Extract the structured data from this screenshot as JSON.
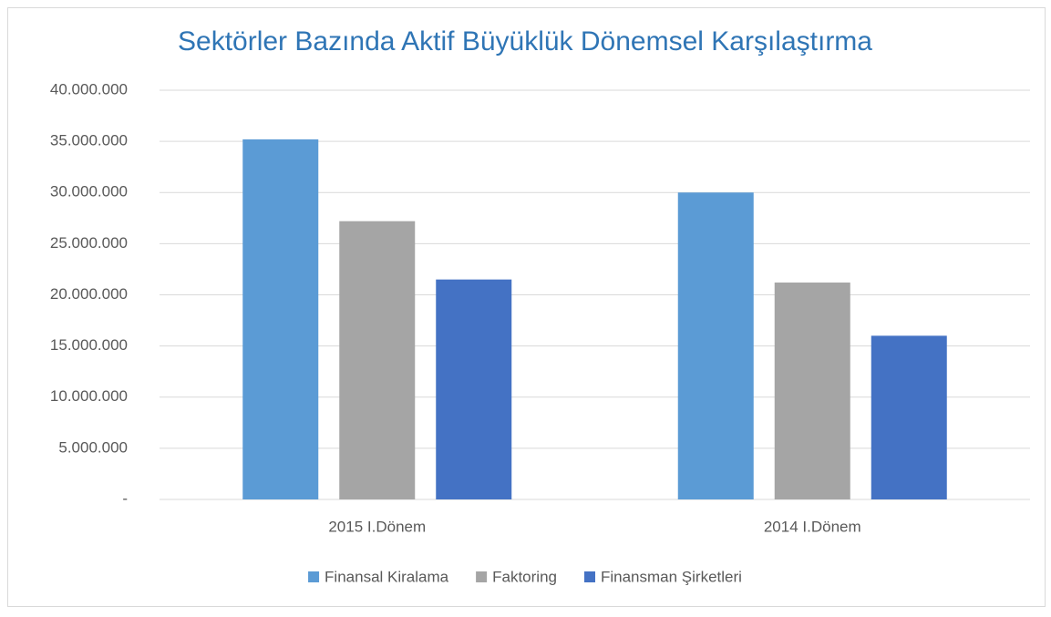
{
  "chart_data": {
    "type": "bar",
    "title": "Sektörler Bazında Aktif Büyüklük Dönemsel Karşılaştırma",
    "categories": [
      "2015 I.Dönem",
      "2014 I.Dönem"
    ],
    "series": [
      {
        "name": "Finansal Kiralama",
        "color": "#5b9bd5",
        "values": [
          35200000,
          30000000
        ]
      },
      {
        "name": "Faktoring",
        "color": "#a5a5a5",
        "values": [
          27200000,
          21200000
        ]
      },
      {
        "name": "Finansman Şirketleri",
        "color": "#4472c4",
        "values": [
          21500000,
          16000000
        ]
      }
    ],
    "ylim": [
      0,
      40000000
    ],
    "yticks": [
      {
        "value": 0,
        "label": "-"
      },
      {
        "value": 5000000,
        "label": "5.000.000"
      },
      {
        "value": 10000000,
        "label": "10.000.000"
      },
      {
        "value": 15000000,
        "label": "15.000.000"
      },
      {
        "value": 20000000,
        "label": "20.000.000"
      },
      {
        "value": 25000000,
        "label": "25.000.000"
      },
      {
        "value": 30000000,
        "label": "30.000.000"
      },
      {
        "value": 35000000,
        "label": "35.000.000"
      },
      {
        "value": 40000000,
        "label": "40.000.000"
      }
    ],
    "grid": true,
    "legend": "bottom"
  }
}
